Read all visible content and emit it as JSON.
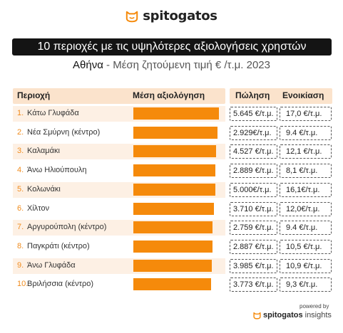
{
  "logo": {
    "text": "spitogatos"
  },
  "title": "10 περιοχές με τις υψηλότερες αξιολογήσεις χρηστών",
  "subtitle": {
    "city": "Αθήνα",
    "rest": " - Μέση ζητούμενη τιμή € /τ.μ. 2023"
  },
  "chart_data": {
    "type": "bar",
    "columns": [
      "Περιοχή",
      "Μέση αξιολόγηση",
      "Πώληση",
      "Ενοικίαση"
    ],
    "categories": [
      "Κάτω Γλυφάδα",
      "Νέα Σμύρνη (κέντρο)",
      "Καλαμάκι",
      "Άνω Ηλιούπουλη",
      "Κολωνάκι",
      "Χίλτον",
      "Αργυρούπολη (κέντρο)",
      "Παγκράτι (κέντρο)",
      "Άνω Γλυφάδα",
      "Βριλήσσια (κέντρο)"
    ],
    "ranks": [
      "1.",
      "2.",
      "3.",
      "4.",
      "5.",
      "6.",
      "7.",
      "8.",
      "9.",
      "10."
    ],
    "values": [
      0.96,
      0.94,
      0.93,
      0.92,
      0.92,
      0.9,
      0.89,
      0.89,
      0.88,
      0.87
    ],
    "value_note": "bar lengths are relative to the Μέση αξιολόγηση column width; no rating numbers are printed",
    "sale": [
      "5.645 €/τ.μ.",
      "2.929€/τ.μ.",
      "4.527 €/τ.μ.",
      "2.889 €/τ.μ.",
      "5.000€/τ.μ.",
      "3.710 €/τ.μ.",
      "2.759 €/τ.μ.",
      "2.887 €/τ.μ.",
      "3.985 €/τ.μ.",
      "3.773 €/τ.μ."
    ],
    "rent": [
      "17,0 €/τ.μ.",
      "9.4 €/τ.μ.",
      "12,1 €/τ.μ.",
      "8,1 €/τ.μ.",
      "16,1€/τ.μ.",
      "12,0€/τ.μ.",
      "9.4 €/τ.μ.",
      "10,5 €/τ.μ.",
      "10,9 €/τ.μ.",
      "9,3 €/τ.μ."
    ],
    "colors": {
      "bar": "#f58a0b",
      "rank": "#f08c1e",
      "header": "#fbe3cc",
      "row": "#fdf0e4",
      "title_bg": "#141414"
    }
  },
  "footer": {
    "powered": "powered by",
    "brand": "spitogatos",
    "sub": "insights"
  }
}
